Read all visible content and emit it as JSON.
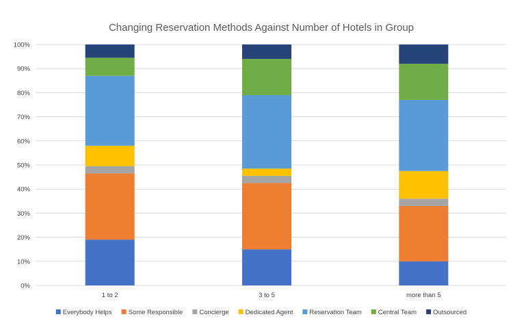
{
  "chart_data": {
    "type": "bar",
    "stacked": true,
    "percent": true,
    "title": "Changing Reservation Methods Against Number of Hotels in Group",
    "categories": [
      "1 to 2",
      "3 to 5",
      "more than 5"
    ],
    "ylim": [
      0,
      100
    ],
    "yticks": [
      "0%",
      "10%",
      "20%",
      "30%",
      "40%",
      "50%",
      "60%",
      "70%",
      "80%",
      "90%",
      "100%"
    ],
    "grid": true,
    "legend_position": "bottom",
    "series": [
      {
        "name": "Everybody Helps",
        "color": "#4472C4",
        "values": [
          19,
          15,
          10
        ]
      },
      {
        "name": "Some Responsible",
        "color": "#ED7D31",
        "values": [
          27.5,
          27.5,
          23
        ]
      },
      {
        "name": "Concierge",
        "color": "#A5A5A5",
        "values": [
          3,
          3,
          3
        ]
      },
      {
        "name": "Dedicated Agent",
        "color": "#FFC000",
        "values": [
          8.5,
          3,
          11.5
        ]
      },
      {
        "name": "Reservation Team",
        "color": "#5B9BD5",
        "values": [
          29,
          30.5,
          29.5
        ]
      },
      {
        "name": "Central Team",
        "color": "#70AD47",
        "values": [
          7.5,
          15,
          15
        ]
      },
      {
        "name": "Outsourced",
        "color": "#264478",
        "values": [
          5.5,
          6,
          8
        ]
      }
    ]
  }
}
